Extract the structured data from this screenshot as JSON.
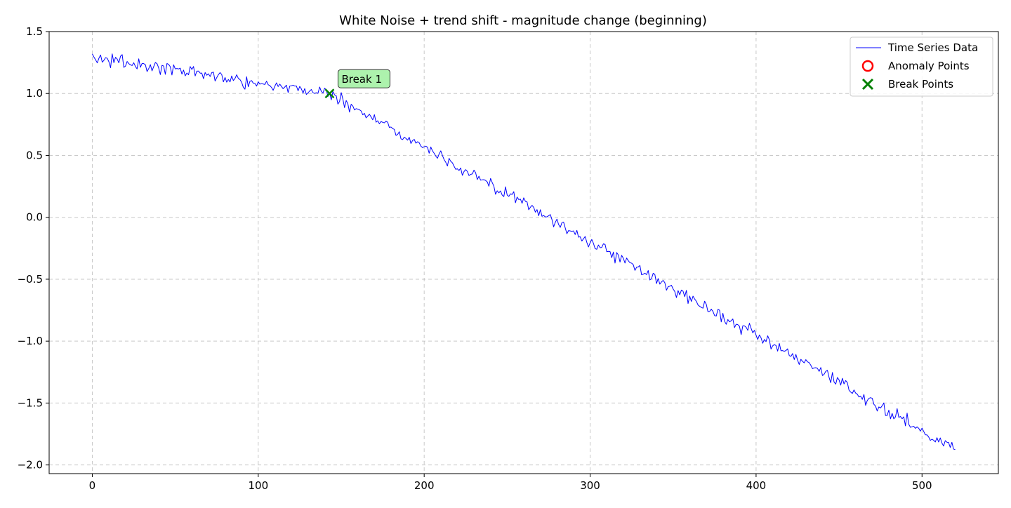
{
  "chart_data": {
    "type": "line",
    "title": "White Noise + trend shift - magnitude change (beginning)",
    "xlabel": "",
    "ylabel": "",
    "xlim": [
      -26,
      546
    ],
    "ylim": [
      -2.07,
      1.5
    ],
    "xticks": [
      0,
      100,
      200,
      300,
      400,
      500
    ],
    "xtick_labels": [
      "0",
      "100",
      "200",
      "300",
      "400",
      "500"
    ],
    "yticks": [
      1.5,
      1.0,
      0.5,
      0.0,
      -0.5,
      -1.0,
      -1.5,
      -2.0
    ],
    "ytick_labels": [
      "1.5",
      "1.0",
      "0.5",
      "0.0",
      "−0.5",
      "−1.0",
      "−1.5",
      "−2.0"
    ],
    "grid": true,
    "legend_position": "top-right",
    "n_points": 521,
    "trend_anchors": [
      {
        "x": 0,
        "y": 1.29
      },
      {
        "x": 143,
        "y": 1.0
      },
      {
        "x": 520,
        "y": -1.87
      }
    ],
    "noise_amplitude": 0.038,
    "series": [
      {
        "name": "Time Series Data",
        "color": "#0000ff",
        "kind": "line"
      },
      {
        "name": "Anomaly Points",
        "color": "#ff0000",
        "kind": "marker-circle",
        "points": []
      },
      {
        "name": "Break Points",
        "color": "#008000",
        "kind": "marker-x",
        "points": [
          {
            "x": 143,
            "y": 1.0
          }
        ]
      }
    ],
    "annotations": [
      {
        "text": "Break 1",
        "x": 143,
        "y": 1.0,
        "bg": "#adf2ad"
      }
    ]
  }
}
